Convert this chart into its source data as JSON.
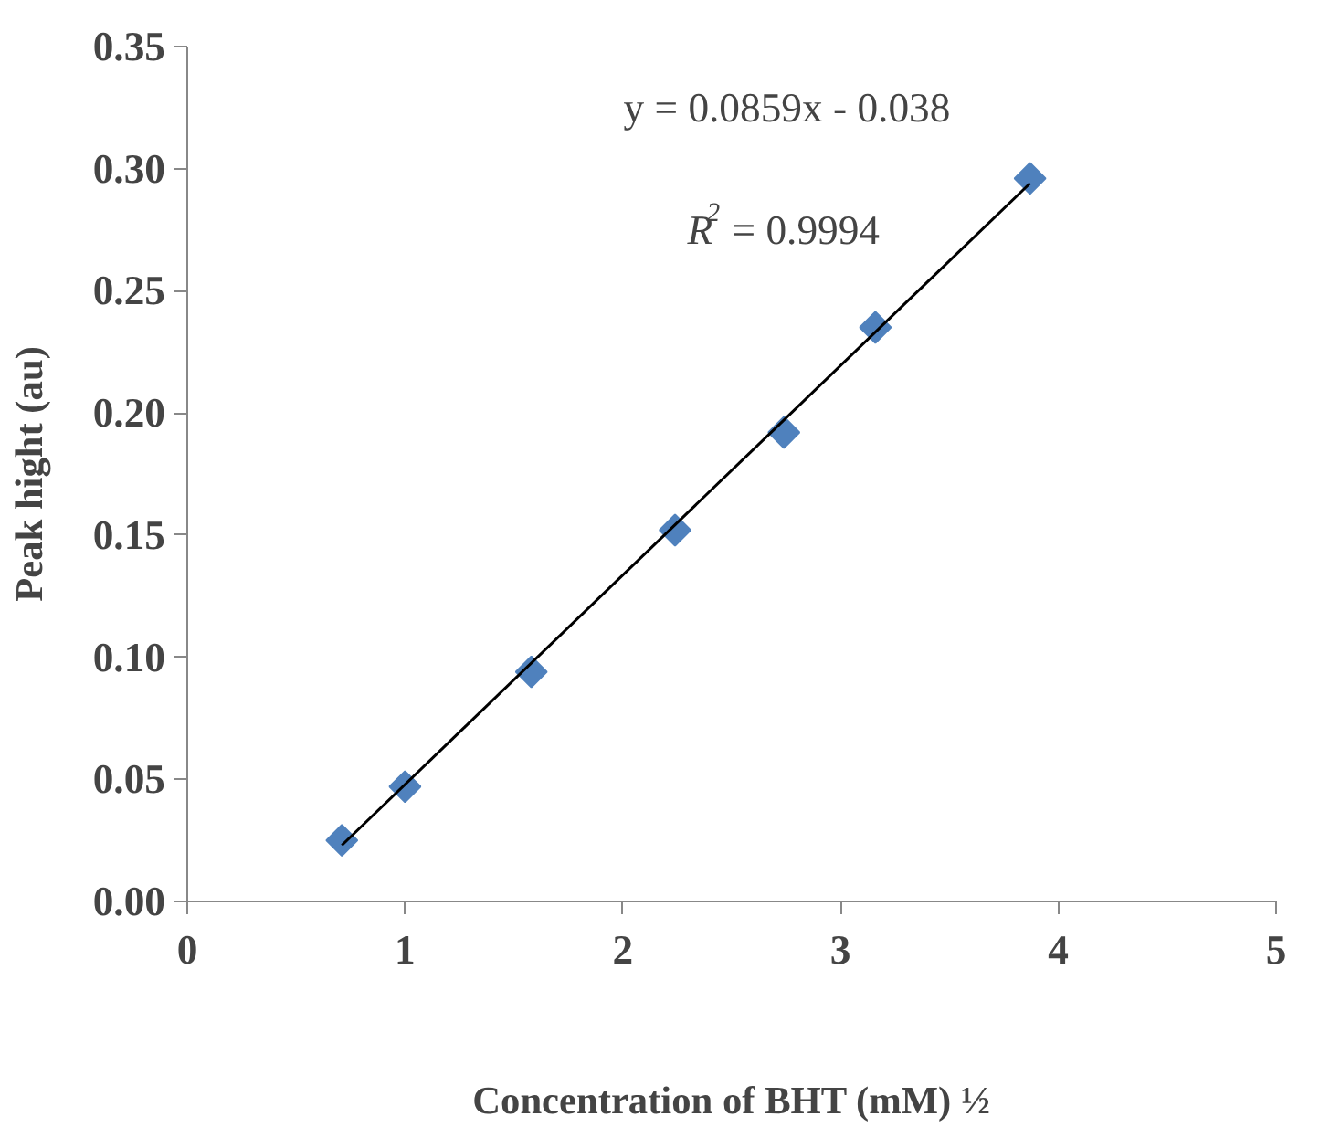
{
  "chart_data": {
    "type": "scatter",
    "xlabel": "Concentration of BHT (mM) ½",
    "ylabel": "Peak hight (au)",
    "annotations": [
      "y = 0.0859x - 0.038",
      "R$^{2}$ = 0.9994"
    ],
    "xlim": [
      0,
      5
    ],
    "xticks": [
      0,
      1,
      2,
      3,
      4,
      5
    ],
    "ylim": [
      0,
      0.35
    ],
    "yticks": [
      {
        "value": 0,
        "label": "0.00"
      },
      {
        "value": 0.05,
        "label": "0.05"
      },
      {
        "value": 0.1,
        "label": "0.10"
      },
      {
        "value": 0.15,
        "label": "0.15"
      },
      {
        "value": 0.2,
        "label": "0.20"
      },
      {
        "value": 0.25,
        "label": "0.25"
      },
      {
        "value": 0.3,
        "label": "0.30"
      },
      {
        "value": 0.35,
        "label": "0.35"
      }
    ],
    "grid": false,
    "marker": "diamond",
    "series": [
      {
        "color": "#4f81bd",
        "x": [
          0.71,
          1.0,
          1.58,
          2.24,
          2.74,
          3.16,
          3.87
        ],
        "values": [
          0.025,
          0.047,
          0.094,
          0.152,
          0.192,
          0.235,
          0.296
        ]
      },
      {
        "type": "line",
        "color": "#000000",
        "x": [
          0.71,
          3.87
        ],
        "values": [
          0.023,
          0.294
        ],
        "line_style": "solid",
        "marker": "none"
      }
    ]
  }
}
